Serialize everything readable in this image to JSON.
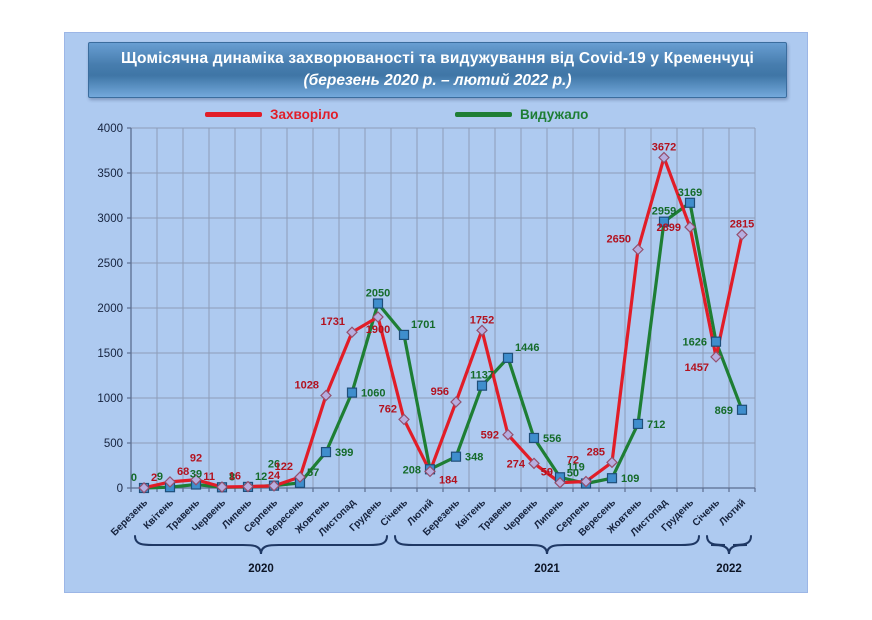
{
  "slide": {
    "title_line1": "Щомісячна динаміка захворюваності та видужування від Covid-19 у Кременчуці",
    "title_line2": "(березень 2020 р. – лютий 2022 р.)"
  },
  "legend": {
    "items": [
      {
        "label": "Захворіло",
        "color": "#e11d28"
      },
      {
        "label": "Видужало",
        "color": "#1e7e34"
      }
    ]
  },
  "chart_data": {
    "type": "line",
    "title": "Щомісячна динаміка захворюваності та видужування від Covid-19 у Кременчуці (березень 2020 р. – лютий 2022 р.)",
    "xlabel": "",
    "ylabel": "",
    "categories": [
      "Березень",
      "Квітень",
      "Травень",
      "Червень",
      "Липень",
      "Серпень",
      "Вересень",
      "Жовтень",
      "Листопад",
      "Грудень",
      "Січень",
      "Лютий",
      "Березень",
      "Квітень",
      "Травень",
      "Червень",
      "Липень",
      "Серпень",
      "Вересень",
      "Жовтень",
      "Листопад",
      "Грудень",
      "Січень",
      "Лютий"
    ],
    "series": [
      {
        "name": "Захворіло",
        "color": "#e11d28",
        "label_color": "#b3121f",
        "marker": "diamond",
        "marker_fill": "#b6aee0",
        "marker_stroke": "#94506e",
        "values": [
          2,
          68,
          92,
          11,
          16,
          24,
          122,
          1028,
          1731,
          1900,
          762,
          184,
          956,
          1752,
          592,
          274,
          59,
          72,
          285,
          2650,
          3672,
          2899,
          1457,
          2815
        ],
        "label_pos": [
          "ar",
          "ar",
          "aa",
          "al",
          "al",
          "a",
          "al",
          "al",
          "al",
          "b",
          "al",
          "rb",
          "al",
          "a",
          "l",
          "l",
          "al",
          "aal",
          "al",
          "al",
          "a",
          "l",
          "bl",
          "a"
        ]
      },
      {
        "name": "Видужало",
        "color": "#1e7e34",
        "label_color": "#156b2a",
        "marker": "square",
        "marker_fill": "#3f8ecd",
        "marker_stroke": "#1f4e79",
        "values": [
          0,
          9,
          39,
          8,
          12,
          26,
          57,
          399,
          1060,
          2050,
          1701,
          208,
          348,
          1137,
          1446,
          556,
          119,
          50,
          109,
          712,
          2959,
          3169,
          1626,
          869
        ],
        "label_pos": [
          "al",
          "al",
          "a",
          "ar",
          "ar",
          "aa",
          "ar",
          "r",
          "r",
          "a",
          "ar",
          "l",
          "r",
          "a",
          "ar",
          "r",
          "ar",
          "al",
          "r",
          "r",
          "a",
          "a",
          "l",
          "l"
        ]
      }
    ],
    "ylim": [
      0,
      4000
    ],
    "ytick_step": 500,
    "yticks": [
      0,
      500,
      1000,
      1500,
      2000,
      2500,
      3000,
      3500,
      4000
    ],
    "grid": true,
    "legend_position": "top",
    "year_groups": [
      {
        "label": "2020",
        "from": 0,
        "to": 9
      },
      {
        "label": "2021",
        "from": 10,
        "to": 21
      },
      {
        "label": "2022",
        "from": 22,
        "to": 23
      }
    ]
  }
}
